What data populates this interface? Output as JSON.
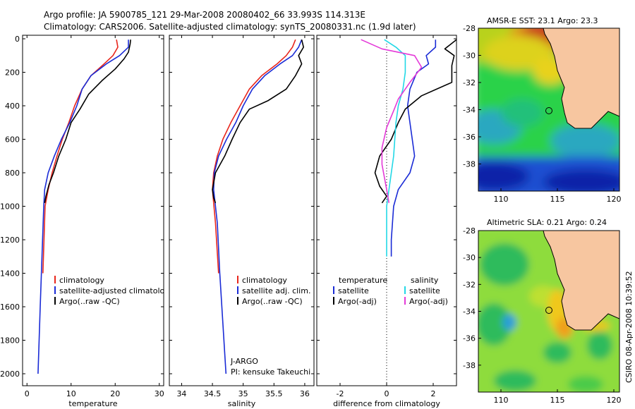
{
  "title_line1": "Argo profile: JA 5900785_121 29-Mar-2008 20080402_66 33.993S 114.313E",
  "title_line2": "Climatology: CARS2006. Satellite-adjusted climatology: synTS_20080331.nc (1.9d later)",
  "side_label": "CSIRO 08-Apr-2008 10:39:52",
  "colors": {
    "climatology": "#e8261c",
    "satellite": "#1a2bd6",
    "argo": "#000000",
    "sat_salinity": "#22d8e6",
    "argo_salinity": "#e43ad8"
  },
  "chart_data": [
    {
      "type": "line",
      "xlabel": "temperature",
      "ylabel": "",
      "xlim": [
        -1,
        31
      ],
      "ylim": [
        2050,
        0
      ],
      "xticks": [
        0,
        10,
        20,
        30
      ],
      "yticks": [
        0,
        200,
        400,
        600,
        800,
        1000,
        1200,
        1400,
        1600,
        1800,
        2000
      ],
      "legend": [
        "climatology",
        "satellite-adjusted climatology",
        "Argo(..raw -QC)"
      ],
      "series": [
        {
          "name": "climatology",
          "color": "climatology",
          "x": [
            20.3,
            20.6,
            19.5,
            17.5,
            14.5,
            12.5,
            10.8,
            9.5,
            8.0,
            6.8,
            5.7,
            4.8,
            4.1,
            3.6
          ],
          "y": [
            5,
            50,
            100,
            150,
            220,
            300,
            400,
            500,
            600,
            700,
            800,
            900,
            1000,
            1400
          ]
        },
        {
          "name": "satellite-adjusted climatology",
          "color": "satellite",
          "x": [
            23.0,
            23.0,
            21.0,
            18.0,
            14.5,
            12.5,
            11.3,
            9.7,
            7.8,
            6.2,
            4.8,
            4.0,
            3.8,
            3.4,
            3.0,
            2.5
          ],
          "y": [
            5,
            50,
            100,
            150,
            220,
            300,
            400,
            500,
            600,
            700,
            800,
            900,
            1000,
            1300,
            1600,
            2000
          ]
        },
        {
          "name": "Argo(..raw -QC)",
          "color": "argo",
          "x": [
            23.5,
            23.4,
            23.0,
            22.0,
            20.0,
            17.0,
            14.0,
            12.0,
            10.0,
            8.8,
            7.2,
            6.0,
            5.0,
            4.3,
            4.0
          ],
          "y": [
            5,
            30,
            80,
            120,
            180,
            250,
            330,
            420,
            500,
            600,
            700,
            800,
            870,
            940,
            980
          ]
        }
      ]
    },
    {
      "type": "line",
      "xlabel": "salinity",
      "ylabel": "",
      "xlim": [
        33.8,
        36.15
      ],
      "ylim": [
        2050,
        0
      ],
      "xticks": [
        34,
        34.5,
        35,
        35.5,
        36
      ],
      "yticks": [
        0,
        200,
        400,
        600,
        800,
        1000,
        1200,
        1400,
        1600,
        1800,
        2000
      ],
      "legend": [
        "climatology",
        "satellite adj. clim.",
        "Argo(..raw -QC)"
      ],
      "annotation": [
        "J-ARGO",
        "PI: kensuke Takeuchi"
      ],
      "series": [
        {
          "name": "climatology",
          "color": "climatology",
          "x": [
            35.85,
            35.8,
            35.7,
            35.55,
            35.3,
            35.1,
            34.95,
            34.8,
            34.67,
            34.58,
            34.52,
            34.5,
            34.55,
            34.6
          ],
          "y": [
            5,
            50,
            100,
            150,
            220,
            300,
            400,
            500,
            600,
            700,
            800,
            900,
            1100,
            1400
          ]
        },
        {
          "name": "satellite adj. clim.",
          "color": "satellite",
          "x": [
            35.95,
            35.9,
            35.8,
            35.6,
            35.35,
            35.15,
            35.0,
            34.88,
            34.73,
            34.6,
            34.53,
            34.52,
            34.58,
            34.62,
            34.67,
            34.72
          ],
          "y": [
            5,
            50,
            100,
            150,
            220,
            300,
            400,
            500,
            600,
            700,
            800,
            900,
            1100,
            1400,
            1700,
            2000
          ]
        },
        {
          "name": "Argo(..raw -QC)",
          "color": "argo",
          "x": [
            35.95,
            35.98,
            35.9,
            35.95,
            35.85,
            35.7,
            35.4,
            35.1,
            34.95,
            34.82,
            34.7,
            34.55,
            34.5,
            34.52,
            34.55
          ],
          "y": [
            5,
            50,
            100,
            150,
            220,
            300,
            370,
            420,
            500,
            600,
            700,
            800,
            900,
            950,
            980
          ]
        }
      ]
    },
    {
      "type": "line",
      "xlabel": "difference from climatology",
      "ylabel": "",
      "xlim": [
        -3.0,
        3.0
      ],
      "ylim": [
        2050,
        0
      ],
      "xticks": [
        -2,
        0,
        2
      ],
      "yticks": [
        0,
        200,
        400,
        600,
        800,
        1000,
        1200,
        1400,
        1600,
        1800,
        2000
      ],
      "legend_header": [
        "temperature",
        "salinity"
      ],
      "legend": [
        "satellite",
        "Argo(-adj)",
        "satellite",
        "Argo(-adj)"
      ],
      "series": [
        {
          "name": "satellite",
          "color": "satellite",
          "x": [
            2.1,
            2.1,
            1.7,
            1.8,
            1.3,
            1.0,
            0.9,
            1.0,
            1.1,
            1.2,
            1.0,
            0.5,
            0.3,
            0.2,
            0.2
          ],
          "y": [
            5,
            50,
            100,
            150,
            200,
            300,
            400,
            500,
            600,
            700,
            800,
            900,
            1000,
            1200,
            1300
          ]
        },
        {
          "name": "Argo(-adj)",
          "color": "argo",
          "x": [
            3.0,
            2.5,
            2.9,
            2.8,
            2.8,
            1.5,
            0.8,
            0.5,
            0.2,
            -0.3,
            -0.5,
            -0.3,
            0.0,
            -0.2
          ],
          "y": [
            5,
            60,
            100,
            160,
            260,
            340,
            420,
            500,
            600,
            700,
            800,
            880,
            940,
            980
          ]
        },
        {
          "name": "salinity satellite",
          "color": "sat_salinity",
          "x": [
            -0.1,
            0.4,
            0.8,
            0.8,
            0.7,
            0.5,
            0.4,
            0.3,
            0.1,
            0.0,
            0.0,
            0.0
          ],
          "y": [
            5,
            50,
            100,
            200,
            300,
            400,
            500,
            700,
            900,
            1000,
            1200,
            1300
          ]
        },
        {
          "name": "salinity Argo(-adj)",
          "color": "argo_salinity",
          "x": [
            -1.1,
            -0.2,
            1.2,
            1.5,
            1.0,
            0.5,
            0.3,
            0.0,
            -0.2,
            -0.2,
            0.0,
            0.1
          ],
          "y": [
            5,
            60,
            100,
            170,
            260,
            360,
            430,
            530,
            650,
            750,
            900,
            980
          ]
        }
      ]
    },
    {
      "type": "heatmap",
      "title": "AMSR-E SST: 23.1  Argo: 23.3",
      "xlim": [
        108,
        120.5
      ],
      "ylim": [
        -40,
        -28
      ],
      "xticks": [
        110,
        115,
        120
      ],
      "yticks": [
        -28,
        -30,
        -32,
        -34,
        -36,
        -38
      ],
      "marker": {
        "x": 114.3,
        "y": -34.0
      }
    },
    {
      "type": "heatmap",
      "title": "Altimetric SLA: 0.21  Argo: 0.24",
      "xlim": [
        108,
        120.5
      ],
      "ylim": [
        -40,
        -28
      ],
      "xticks": [
        110,
        115,
        120
      ],
      "yticks": [
        -28,
        -30,
        -32,
        -34,
        -36,
        -38
      ],
      "marker": {
        "x": 114.3,
        "y": -34.0
      }
    }
  ]
}
